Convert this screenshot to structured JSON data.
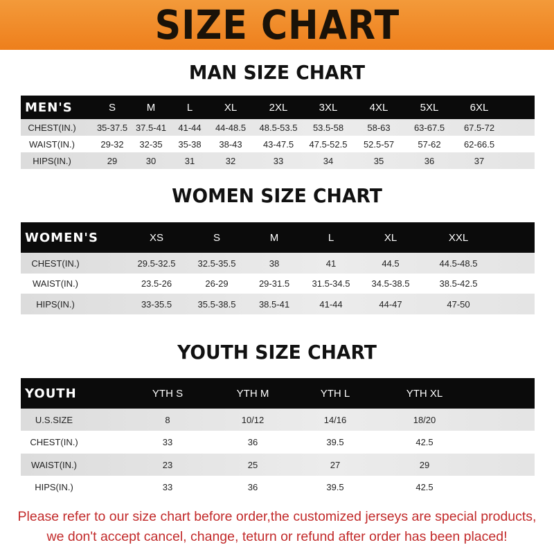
{
  "banner": {
    "title": "SIZE CHART",
    "color": "#ee7f1c"
  },
  "men": {
    "title": "MAN SIZE CHART",
    "header": [
      "MEN'S",
      "S",
      "M",
      "L",
      "XL",
      "2XL",
      "3XL",
      "4XL",
      "5XL",
      "6XL"
    ],
    "rows": [
      [
        "CHEST(IN.)",
        "35-37.5",
        "37.5-41",
        "41-44",
        "44-48.5",
        "48.5-53.5",
        "53.5-58",
        "58-63",
        "63-67.5",
        "67.5-72"
      ],
      [
        "WAIST(IN.)",
        "29-32",
        "32-35",
        "35-38",
        "38-43",
        "43-47.5",
        "47.5-52.5",
        "52.5-57",
        "57-62",
        "62-66.5"
      ],
      [
        "HIPS(IN.)",
        "29",
        "30",
        "31",
        "32",
        "33",
        "34",
        "35",
        "36",
        "37"
      ]
    ]
  },
  "women": {
    "title": "WOMEN SIZE CHART",
    "header": [
      "WOMEN'S",
      "XS",
      "S",
      "M",
      "L",
      "XL",
      "XXL"
    ],
    "rows": [
      [
        "CHEST(IN.)",
        "29.5-32.5",
        "32.5-35.5",
        "38",
        "41",
        "44.5",
        "44.5-48.5"
      ],
      [
        "WAIST(IN.)",
        "23.5-26",
        "26-29",
        "29-31.5",
        "31.5-34.5",
        "34.5-38.5",
        "38.5-42.5"
      ],
      [
        "HIPS(IN.)",
        "33-35.5",
        "35.5-38.5",
        "38.5-41",
        "41-44",
        "44-47",
        "47-50"
      ]
    ]
  },
  "youth": {
    "title": "YOUTH SIZE CHART",
    "header": [
      "YOUTH",
      "YTH S",
      "YTH M",
      "YTH L",
      "YTH XL"
    ],
    "rows": [
      [
        "U.S.SIZE",
        "8",
        "10/12",
        "14/16",
        "18/20"
      ],
      [
        "CHEST(IN.)",
        "33",
        "36",
        "39.5",
        "42.5"
      ],
      [
        "WAIST(IN.)",
        "23",
        "25",
        "27",
        "29"
      ],
      [
        "HIPS(IN.)",
        "33",
        "36",
        "39.5",
        "42.5"
      ]
    ]
  },
  "note": {
    "line1": "Please refer to our size chart before order,the customized jerseys are special products,",
    "line2": "we don't accept cancel, change, teturn or refund after order has been placed!",
    "color": "#c22a2a"
  }
}
